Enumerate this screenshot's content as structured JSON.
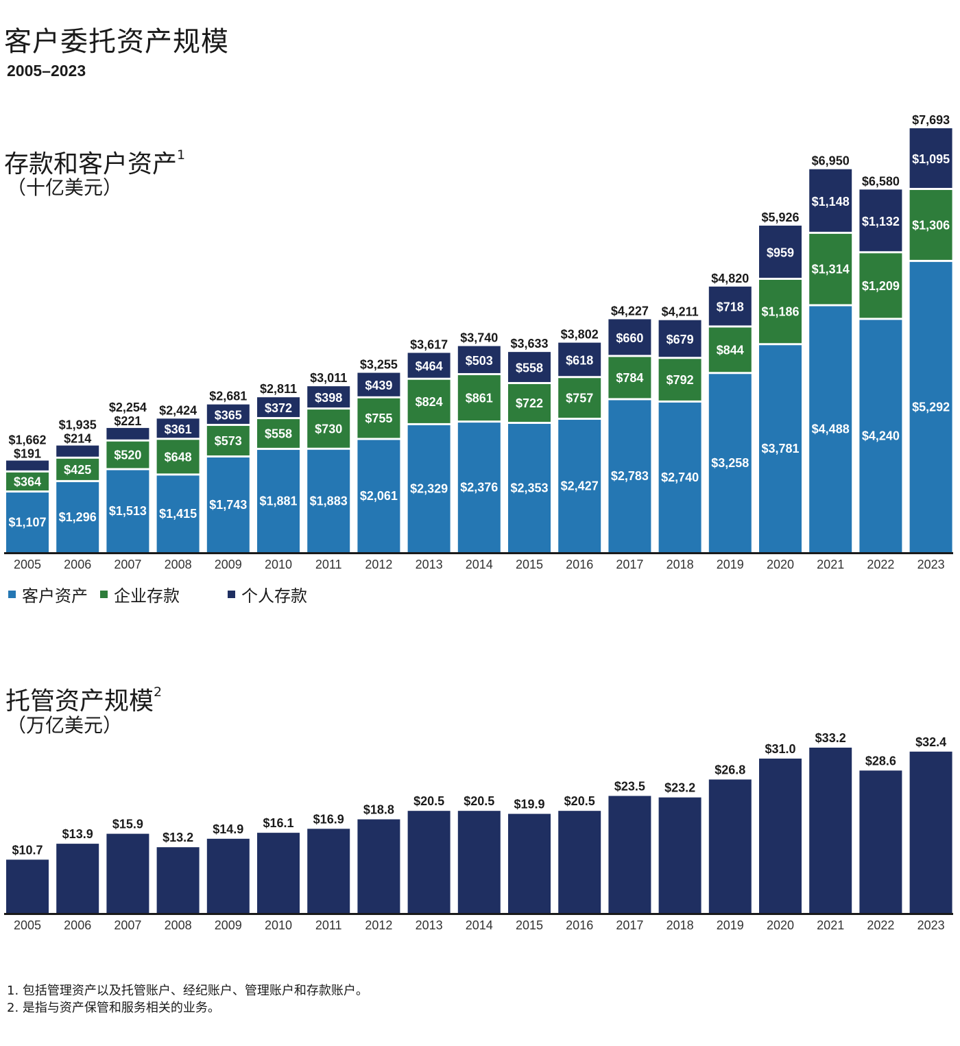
{
  "header": {
    "title": "客户委托资产规模",
    "year_range": "2005–2023"
  },
  "chart1_header": {
    "title": "存款和客户资产",
    "title_note": "1",
    "unit": "（十亿美元）"
  },
  "chart2_header": {
    "title": "托管资产规模",
    "title_note": "2",
    "unit": "（万亿美元）"
  },
  "legend": {
    "client_assets": "客户资产",
    "corporate_deposits": "企业存款",
    "personal_deposits": "个人存款"
  },
  "colors": {
    "client_assets": "#2577b3",
    "corporate_deposits": "#2e7d3b",
    "personal_deposits": "#1f2f61",
    "axis": "#1a1a1a"
  },
  "footnotes": [
    "1. 包括管理资产以及托管账户、经纪账户、管理账户和存款账户。",
    "2. 是指与资产保管和服务相关的业务。"
  ],
  "chart_data": [
    {
      "type": "bar",
      "stacked": true,
      "categories": [
        "2005",
        "2006",
        "2007",
        "2008",
        "2009",
        "2010",
        "2011",
        "2012",
        "2013",
        "2014",
        "2015",
        "2016",
        "2017",
        "2018",
        "2019",
        "2020",
        "2021",
        "2022",
        "2023"
      ],
      "series": [
        {
          "name": "客户资产",
          "values": [
            1107,
            1296,
            1513,
            1415,
            1743,
            1881,
            1883,
            2061,
            2329,
            2376,
            2353,
            2427,
            2783,
            2740,
            3258,
            3781,
            4488,
            4240,
            5292
          ]
        },
        {
          "name": "企业存款",
          "values": [
            364,
            425,
            520,
            648,
            573,
            558,
            730,
            755,
            824,
            861,
            722,
            757,
            784,
            792,
            844,
            1186,
            1314,
            1209,
            1306
          ]
        },
        {
          "name": "个人存款",
          "values": [
            191,
            214,
            221,
            361,
            365,
            372,
            398,
            439,
            464,
            503,
            558,
            618,
            660,
            679,
            718,
            959,
            1148,
            1132,
            1095
          ]
        }
      ],
      "totals": [
        1662,
        1935,
        2254,
        2424,
        2681,
        2811,
        3011,
        3255,
        3617,
        3740,
        3633,
        3802,
        4227,
        4211,
        4820,
        5926,
        6950,
        6580,
        7693
      ],
      "value_prefix": "$",
      "ylim": [
        0,
        7693
      ],
      "grid": false,
      "legend": "bottom-left"
    },
    {
      "type": "bar",
      "categories": [
        "2005",
        "2006",
        "2007",
        "2008",
        "2009",
        "2010",
        "2011",
        "2012",
        "2013",
        "2014",
        "2015",
        "2016",
        "2017",
        "2018",
        "2019",
        "2020",
        "2021",
        "2022",
        "2023"
      ],
      "values": [
        10.7,
        13.9,
        15.9,
        13.2,
        14.9,
        16.1,
        16.9,
        18.8,
        20.5,
        20.5,
        19.9,
        20.5,
        23.5,
        23.2,
        26.8,
        31.0,
        33.2,
        28.6,
        32.4
      ],
      "value_prefix": "$",
      "ylim": [
        0,
        33.2
      ],
      "grid": false
    }
  ]
}
